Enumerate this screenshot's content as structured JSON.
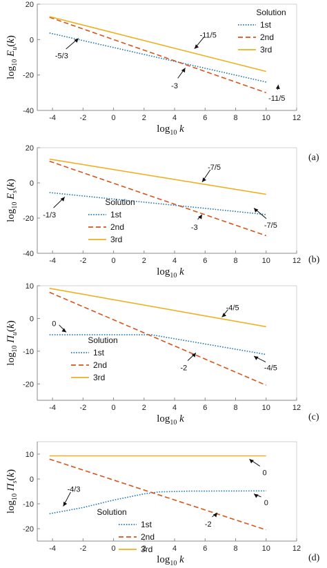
{
  "chart_data": [
    {
      "type": "line",
      "panel_label": "(a)",
      "xlabel": "log10 k",
      "ylabel": "log10 Eu(k)",
      "xlim": [
        -5,
        12
      ],
      "ylim": [
        -40,
        20
      ],
      "xticks": [
        "-4",
        "-2",
        "0",
        "2",
        "4",
        "6",
        "8",
        "10",
        "12"
      ],
      "yticks": [
        "-40",
        "-20",
        "0",
        "20"
      ],
      "legend": {
        "title": "Solution",
        "placement": "top-right"
      },
      "series": [
        {
          "name": "1st",
          "style": "dotted",
          "color": "#1f77b4",
          "x": [
            -4.2,
            10
          ],
          "y": [
            3.7,
            -24
          ]
        },
        {
          "name": "2nd",
          "style": "dashed",
          "color": "#d95319",
          "x": [
            -4.2,
            10
          ],
          "y": [
            12.6,
            -30
          ]
        },
        {
          "name": "3rd",
          "style": "solid",
          "color": "#edb120",
          "x": [
            -4.2,
            10
          ],
          "y": [
            13,
            -18
          ]
        }
      ],
      "annotations": [
        {
          "text": "-5/3",
          "at": [
            -2.3,
            0.7
          ],
          "label": [
            -3.4,
            -9
          ]
        },
        {
          "text": "-3",
          "at": [
            4.7,
            -16
          ],
          "label": [
            4,
            -26
          ]
        },
        {
          "text": "-11/5",
          "at": [
            5.3,
            -5.2
          ],
          "label": [
            6.2,
            2.6
          ]
        },
        {
          "text": "-11/5",
          "at": [
            10.8,
            -25.5
          ],
          "label": [
            10.7,
            -33
          ]
        }
      ]
    },
    {
      "type": "line",
      "panel_label": "(b)",
      "xlabel": "log10 k",
      "ylabel": "log10 Es(k)",
      "xlim": [
        -5,
        12
      ],
      "ylim": [
        -40,
        20
      ],
      "xticks": [
        "-4",
        "-2",
        "0",
        "2",
        "4",
        "6",
        "8",
        "10",
        "12"
      ],
      "yticks": [
        "-40",
        "-20",
        "0",
        "20"
      ],
      "legend": {
        "title": "Solution",
        "placement": "center-left"
      },
      "series": [
        {
          "name": "1st",
          "style": "dotted",
          "color": "#1f77b4",
          "x": [
            -4.2,
            10
          ],
          "y": [
            -5.5,
            -18
          ]
        },
        {
          "name": "2nd",
          "style": "dashed",
          "color": "#d95319",
          "x": [
            -4.2,
            10
          ],
          "y": [
            12.3,
            -30
          ]
        },
        {
          "name": "3rd",
          "style": "solid",
          "color": "#edb120",
          "x": [
            -4.2,
            10
          ],
          "y": [
            13.5,
            -6.5
          ]
        }
      ],
      "annotations": [
        {
          "text": "-1/3",
          "at": [
            -3.2,
            -8
          ],
          "label": [
            -4.2,
            -18
          ]
        },
        {
          "text": "-3",
          "at": [
            5.8,
            -18
          ],
          "label": [
            5.3,
            -25
          ]
        },
        {
          "text": "-7/5",
          "at": [
            5.8,
            0.5
          ],
          "label": [
            6.6,
            9
          ]
        },
        {
          "text": "-7/5",
          "at": [
            9.2,
            -14.3
          ],
          "label": [
            10.3,
            -24
          ]
        }
      ]
    },
    {
      "type": "line",
      "panel_label": "(c)",
      "xlabel": "log10 k",
      "ylabel": "log10 Πu(k)",
      "xlim": [
        -5,
        12
      ],
      "ylim": [
        -25,
        10
      ],
      "xticks": [
        "-4",
        "-2",
        "0",
        "2",
        "4",
        "6",
        "8",
        "10",
        "12"
      ],
      "yticks": [
        "-20",
        "-10",
        "0",
        "10"
      ],
      "legend": {
        "title": "Solution",
        "placement": "center-left"
      },
      "series": [
        {
          "name": "1st",
          "style": "dotted",
          "color": "#1f77b4",
          "x": [
            -4.2,
            2.5,
            10
          ],
          "y": [
            -5,
            -5,
            -11
          ]
        },
        {
          "name": "2nd",
          "style": "dashed",
          "color": "#d95319",
          "x": [
            -4.2,
            10
          ],
          "y": [
            8,
            -20.4
          ]
        },
        {
          "name": "3rd",
          "style": "solid",
          "color": "#edb120",
          "x": [
            -4.2,
            10
          ],
          "y": [
            9.2,
            -2.5
          ]
        }
      ],
      "annotations": [
        {
          "text": "0",
          "at": [
            -3.1,
            -4.2
          ],
          "label": [
            -3.9,
            -1.5
          ]
        },
        {
          "text": "-2",
          "at": [
            5.4,
            -10.5
          ],
          "label": [
            4.6,
            -15
          ]
        },
        {
          "text": "-4/5",
          "at": [
            7.1,
            0.4
          ],
          "label": [
            7.8,
            3.4
          ]
        },
        {
          "text": "-4/5",
          "at": [
            9.2,
            -11.5
          ],
          "label": [
            10.3,
            -15
          ]
        }
      ]
    },
    {
      "type": "line",
      "panel_label": "(d)",
      "xlabel": "log10 k",
      "ylabel": "log10 Πs(k)",
      "xlim": [
        -5,
        12
      ],
      "ylim": [
        -25,
        15
      ],
      "xticks": [
        "-4",
        "-2",
        "0",
        "2",
        "4",
        "6",
        "8",
        "10",
        "12"
      ],
      "yticks": [
        "-20",
        "-10",
        "0",
        "10"
      ],
      "legend": {
        "title": "Solution",
        "placement": "bottom-center"
      },
      "series": [
        {
          "name": "1st",
          "style": "dotted",
          "color": "#1f77b4",
          "x": [
            -4.2,
            -2,
            0,
            2,
            3,
            5,
            10
          ],
          "y": [
            -14,
            -11.5,
            -8.5,
            -6,
            -5.2,
            -4.9,
            -4.8
          ]
        },
        {
          "name": "2nd",
          "style": "dashed",
          "color": "#d95319",
          "x": [
            -4.2,
            10
          ],
          "y": [
            8,
            -20.5
          ]
        },
        {
          "name": "3rd",
          "style": "solid",
          "color": "#edb120",
          "x": [
            -4.2,
            10
          ],
          "y": [
            9.3,
            9.3
          ]
        }
      ],
      "annotations": [
        {
          "text": "-4/3",
          "at": [
            -3.3,
            -11
          ],
          "label": [
            -2.6,
            -4
          ]
        },
        {
          "text": "-2",
          "at": [
            6.8,
            -13.6
          ],
          "label": [
            6.2,
            -18
          ]
        },
        {
          "text": "0",
          "at": [
            8.9,
            8
          ],
          "label": [
            9.9,
            2.7
          ]
        },
        {
          "text": "0",
          "at": [
            9.2,
            -6
          ],
          "label": [
            10,
            -9.5
          ]
        }
      ]
    }
  ]
}
